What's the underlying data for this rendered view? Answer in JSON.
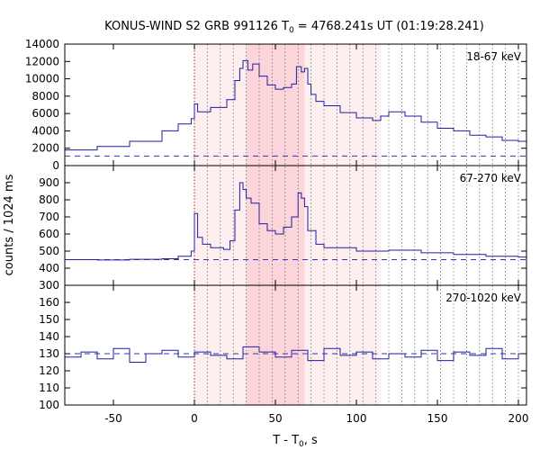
{
  "chart_data": {
    "type": "line",
    "title": "KONUS-WIND S2 GRB 991126 T",
    "title_sub": "0",
    "title_rest": " = 4768.241s UT (01:19:28.241)",
    "xlabel_main": "T - T",
    "xlabel_sub": "0",
    "xlabel_rest": ", s",
    "ylabel": "counts / 1024 ms",
    "xlim": [
      -80,
      205
    ],
    "x_ticks": [
      -50,
      0,
      50,
      100,
      150,
      200
    ],
    "shaded_interval": [
      32,
      68
    ],
    "outer_interval": [
      0,
      115
    ],
    "colors": {
      "curve": "#1f1f9f",
      "background": "#3535b5",
      "shade_outer": "#fdeef0",
      "shade_inner": "#fcd5da",
      "trigger": "#b8231a",
      "grid": "#444444"
    },
    "panels": [
      {
        "name": "18-67 keV",
        "ylim": [
          0,
          14000
        ],
        "yticks": [
          0,
          2000,
          4000,
          6000,
          8000,
          10000,
          12000,
          14000
        ],
        "background_level": 1100,
        "x": [
          -80,
          -60,
          -40,
          -20,
          -10,
          -2,
          0,
          2,
          10,
          20,
          25,
          28,
          30,
          33,
          36,
          40,
          45,
          50,
          55,
          60,
          63,
          66,
          68,
          70,
          72,
          75,
          80,
          90,
          100,
          110,
          115,
          120,
          130,
          140,
          150,
          160,
          170,
          180,
          190,
          200,
          205
        ],
        "values": [
          1800,
          2200,
          2800,
          4000,
          4800,
          5400,
          7100,
          6200,
          6700,
          7600,
          9800,
          11200,
          12100,
          11000,
          11700,
          10300,
          9300,
          8800,
          9000,
          9400,
          11400,
          10800,
          11200,
          9400,
          8200,
          7400,
          6900,
          6100,
          5500,
          5200,
          5700,
          6200,
          5700,
          5000,
          4300,
          4000,
          3500,
          3300,
          2900,
          2800,
          3000
        ]
      },
      {
        "name": "67-270 keV",
        "ylim": [
          300,
          1000
        ],
        "yticks": [
          300,
          400,
          500,
          600,
          700,
          800,
          900
        ],
        "background_level": 450,
        "x": [
          -80,
          -60,
          -40,
          -20,
          -10,
          -2,
          0,
          2,
          5,
          10,
          18,
          22,
          25,
          28,
          30,
          32,
          35,
          40,
          45,
          50,
          55,
          60,
          64,
          66,
          68,
          70,
          75,
          80,
          100,
          120,
          140,
          160,
          180,
          200,
          205
        ],
        "values": [
          450,
          448,
          452,
          455,
          470,
          500,
          720,
          580,
          540,
          520,
          510,
          560,
          740,
          900,
          860,
          810,
          780,
          660,
          620,
          600,
          640,
          700,
          840,
          810,
          760,
          620,
          540,
          520,
          500,
          505,
          490,
          480,
          470,
          465,
          460
        ]
      },
      {
        "name": "270-1020 keV",
        "ylim": [
          100,
          170
        ],
        "yticks": [
          100,
          110,
          120,
          130,
          140,
          150,
          160
        ],
        "background_level": 130,
        "x": [
          -80,
          -70,
          -60,
          -50,
          -40,
          -30,
          -20,
          -10,
          0,
          10,
          20,
          30,
          40,
          50,
          60,
          70,
          80,
          90,
          100,
          110,
          120,
          130,
          140,
          150,
          160,
          170,
          180,
          190,
          200,
          205
        ],
        "values": [
          128,
          131,
          127,
          133,
          125,
          130,
          132,
          128,
          131,
          129,
          127,
          134,
          131,
          128,
          132,
          126,
          133,
          129,
          131,
          127,
          130,
          128,
          132,
          126,
          131,
          129,
          133,
          127,
          130,
          128
        ]
      }
    ]
  }
}
